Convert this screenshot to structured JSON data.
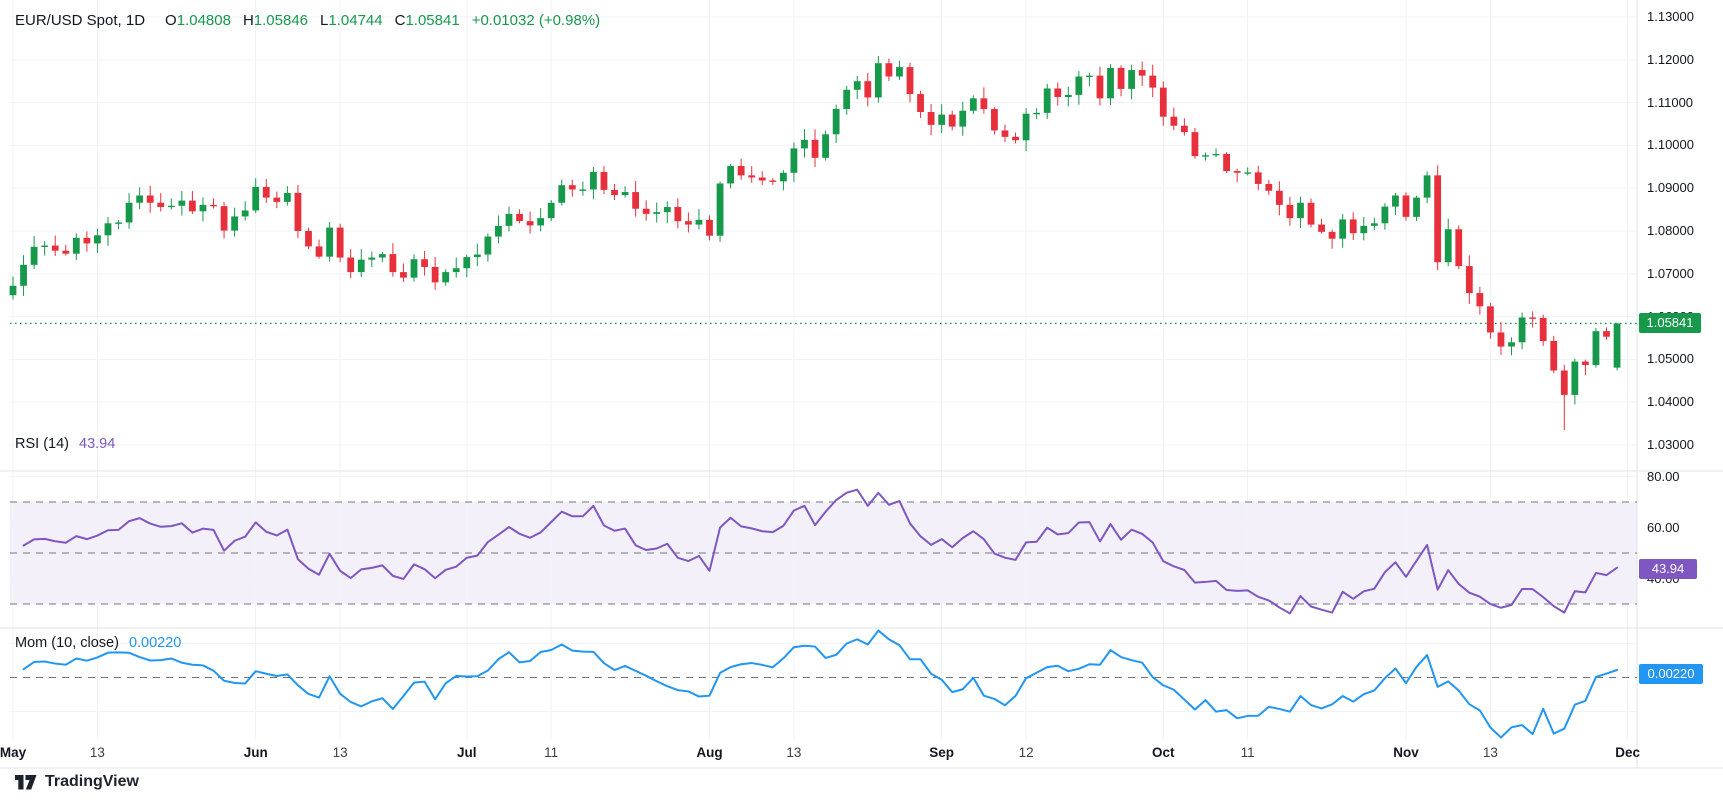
{
  "header": {
    "symbol": "EUR/USD Spot, 1D",
    "ohlc": [
      {
        "k": "O",
        "v": "1.04808"
      },
      {
        "k": "H",
        "v": "1.05846"
      },
      {
        "k": "L",
        "v": "1.04744"
      },
      {
        "k": "C",
        "v": "1.05841"
      }
    ],
    "change": "+0.01032 (+0.98%)"
  },
  "indicators": {
    "rsi": {
      "label": "RSI (14)",
      "value": "43.94"
    },
    "mom": {
      "label": "Mom (10, close)",
      "value": "0.00220"
    }
  },
  "badges": {
    "price": "1.05841",
    "rsi": "43.94",
    "mom": "0.00220"
  },
  "watermark": "TradingView",
  "colors": {
    "up": "#17994c",
    "down": "#e8303d",
    "rsi_line": "#7e57c2",
    "mom_line": "#2196f3",
    "band_fill": "rgba(126,87,194,0.09)",
    "grid": "#f0f3fa",
    "separator": "#e0e3eb",
    "dashed_level": "#72767e",
    "text": "#131722",
    "last_price_line": "#17994c"
  },
  "chart_data": {
    "type": "candlestick",
    "symbol": "EUR/USD Spot",
    "interval": "1D",
    "x_axis": {
      "labels": [
        {
          "t": "May",
          "i": 0,
          "m": 1
        },
        {
          "t": "13",
          "i": 8,
          "m": 0
        },
        {
          "t": "Jun",
          "i": 23,
          "m": 1
        },
        {
          "t": "13",
          "i": 31,
          "m": 0
        },
        {
          "t": "Jul",
          "i": 43,
          "m": 1
        },
        {
          "t": "11",
          "i": 51,
          "m": 0
        },
        {
          "t": "Aug",
          "i": 66,
          "m": 1
        },
        {
          "t": "13",
          "i": 74,
          "m": 0
        },
        {
          "t": "Sep",
          "i": 88,
          "m": 1
        },
        {
          "t": "12",
          "i": 96,
          "m": 0
        },
        {
          "t": "Oct",
          "i": 109,
          "m": 1
        },
        {
          "t": "11",
          "i": 117,
          "m": 0
        },
        {
          "t": "Nov",
          "i": 132,
          "m": 1
        },
        {
          "t": "13",
          "i": 140,
          "m": 0
        },
        {
          "t": "Dec",
          "i": 153,
          "m": 1
        }
      ]
    },
    "price_pane": {
      "ylim": [
        1.03,
        1.13
      ],
      "ticks": [
        "1.13000",
        "1.12000",
        "1.11000",
        "1.10000",
        "1.09000",
        "1.08000",
        "1.07000",
        "1.06000",
        "1.05000",
        "1.04000",
        "1.03000"
      ],
      "last_price": 1.05841,
      "first_open": 1.065,
      "closes": [
        1.0672,
        1.0721,
        1.0763,
        1.0766,
        1.0754,
        1.0747,
        1.0784,
        1.0771,
        1.079,
        1.0818,
        1.082,
        1.0866,
        1.0883,
        1.0866,
        1.0856,
        1.0859,
        1.0871,
        1.0846,
        1.0861,
        1.0858,
        1.0801,
        1.0834,
        1.0848,
        1.0903,
        1.0878,
        1.0868,
        1.0889,
        1.08,
        1.0764,
        1.074,
        1.0808,
        1.0738,
        1.0704,
        1.0733,
        1.0738,
        1.0746,
        1.0704,
        1.0691,
        1.0734,
        1.0716,
        1.068,
        1.0704,
        1.0713,
        1.0739,
        1.0745,
        1.0787,
        1.0812,
        1.084,
        1.0823,
        1.0813,
        1.083,
        1.0866,
        1.0907,
        1.0897,
        1.0897,
        1.0938,
        1.0896,
        1.0884,
        1.0891,
        1.0852,
        1.084,
        1.0844,
        1.0856,
        1.0823,
        1.0815,
        1.0826,
        1.0789,
        1.0911,
        1.0952,
        1.093,
        1.0925,
        1.0918,
        1.0916,
        1.0936,
        1.0993,
        1.1013,
        1.0971,
        1.1026,
        1.1085,
        1.113,
        1.115,
        1.1112,
        1.1192,
        1.1161,
        1.1183,
        1.112,
        1.1078,
        1.1048,
        1.1072,
        1.1044,
        1.1081,
        1.111,
        1.1085,
        1.1035,
        1.102,
        1.1012,
        1.1074,
        1.1076,
        1.1133,
        1.1113,
        1.1118,
        1.1161,
        1.1163,
        1.111,
        1.1181,
        1.1132,
        1.1176,
        1.1163,
        1.1135,
        1.1067,
        1.1046,
        1.1031,
        1.0975,
        1.0977,
        1.098,
        1.094,
        1.0936,
        1.0937,
        1.091,
        1.0894,
        1.0861,
        1.083,
        1.0866,
        1.0815,
        1.0798,
        1.0782,
        1.0827,
        1.0795,
        1.0812,
        1.0818,
        1.0857,
        1.0883,
        1.0833,
        1.0878,
        1.093,
        1.0727,
        1.0804,
        1.0718,
        1.0655,
        1.0624,
        1.0563,
        1.053,
        1.054,
        1.0598,
        1.0597,
        1.0543,
        1.0474,
        1.0417,
        1.0495,
        1.0487,
        1.0566,
        1.0553,
        1.05841
      ],
      "overrides": {
        "147": {
          "l": 1.0335
        },
        "152": {
          "o": 1.04808,
          "h": 1.05846,
          "l": 1.04744,
          "c": 1.05841
        }
      }
    },
    "rsi_pane": {
      "type": "line",
      "period": 14,
      "last": 43.94,
      "levels": [
        70,
        50,
        30
      ],
      "band": [
        30,
        70
      ],
      "ticks": [
        {
          "t": "80.00",
          "v": 80
        },
        {
          "t": "60.00",
          "v": 60
        },
        {
          "t": "40.00",
          "v": 40
        }
      ]
    },
    "mom_pane": {
      "type": "line",
      "period": 10,
      "source": "close",
      "last": 0.0022,
      "zero_line": 0
    }
  }
}
